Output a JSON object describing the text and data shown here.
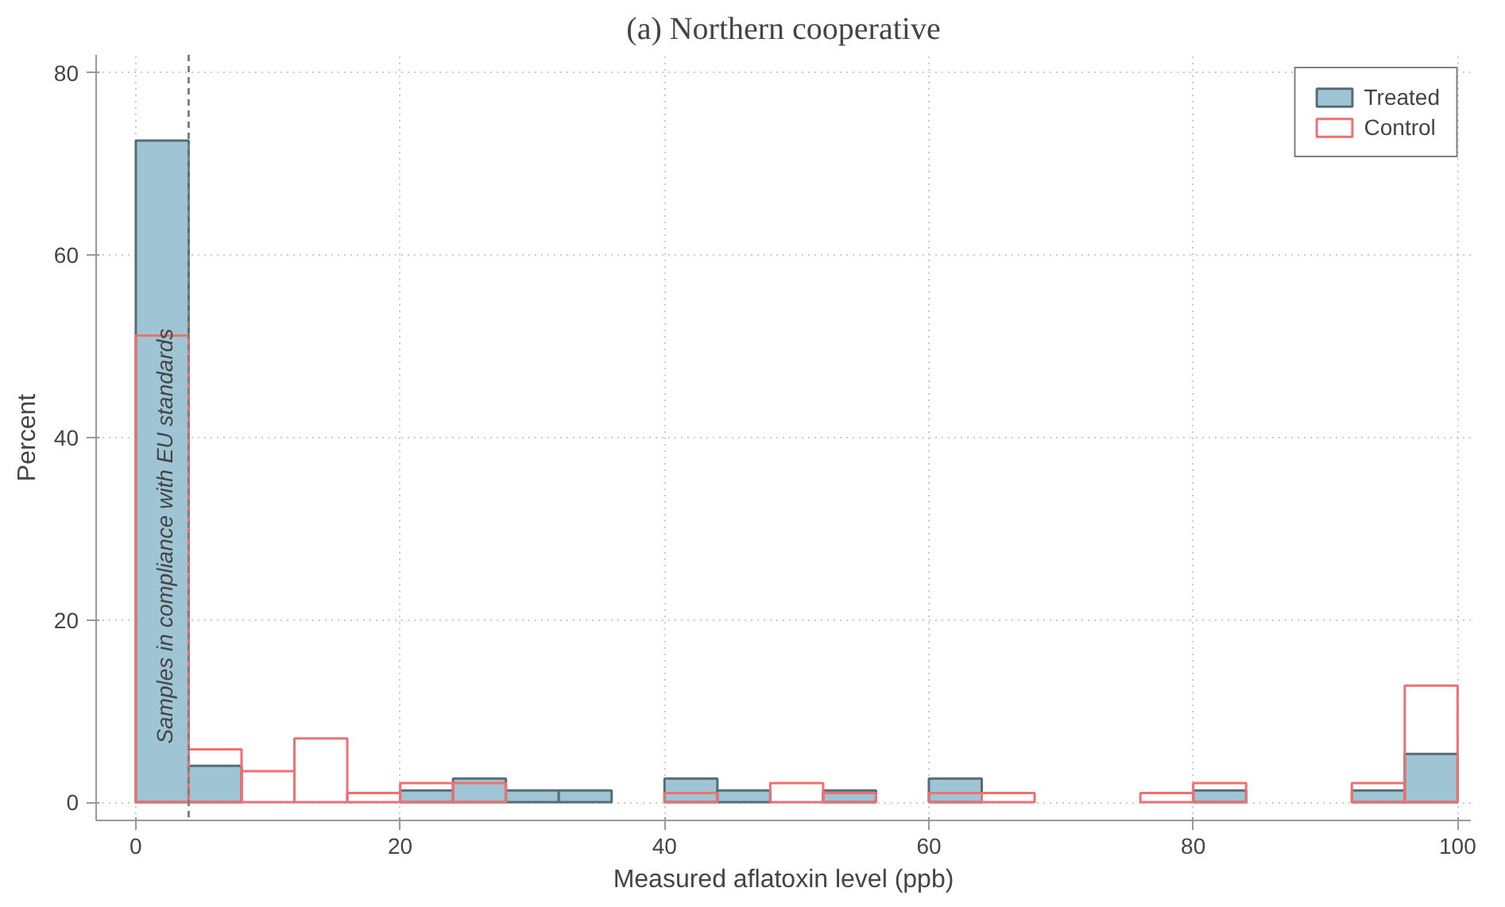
{
  "chart_data": {
    "type": "histogram",
    "title": "(a) Northern cooperative",
    "xlabel": "Measured aflatoxin level (ppb)",
    "ylabel": "Percent",
    "bins": [
      0,
      4,
      8,
      12,
      16,
      20,
      24,
      28,
      32,
      36,
      40,
      44,
      48,
      52,
      56,
      60,
      64,
      68,
      72,
      76,
      80,
      84,
      88,
      92,
      96,
      100
    ],
    "series": [
      {
        "name": "Treated",
        "color": "#9fc5d5",
        "values": [
          72.6,
          4.0,
          0,
          0,
          0,
          1.3,
          2.6,
          1.3,
          1.3,
          0,
          2.6,
          1.3,
          0,
          1.3,
          0,
          2.6,
          0,
          0,
          0,
          0,
          1.3,
          0,
          0,
          1.3,
          5.3
        ]
      },
      {
        "name": "Control",
        "color": "#f07070",
        "values": [
          51.2,
          5.8,
          3.4,
          7.0,
          1.0,
          2.1,
          2.1,
          0,
          0,
          0,
          1.0,
          0,
          2.1,
          1.0,
          0,
          1.0,
          1.0,
          0,
          0,
          1.0,
          2.1,
          0,
          0,
          2.1,
          12.8
        ]
      }
    ],
    "xlim": [
      -3,
      101
    ],
    "ylim": [
      -2,
      82
    ],
    "xticks": [
      0,
      20,
      40,
      60,
      80,
      100
    ],
    "yticks": [
      0,
      20,
      40,
      60,
      80
    ],
    "ref_lines": [
      {
        "axis": "x",
        "value": 4,
        "label": "Samples in compliance with EU standards",
        "color": "#808080",
        "line_style": "dashed"
      }
    ],
    "grid": true,
    "legend": "top right"
  }
}
